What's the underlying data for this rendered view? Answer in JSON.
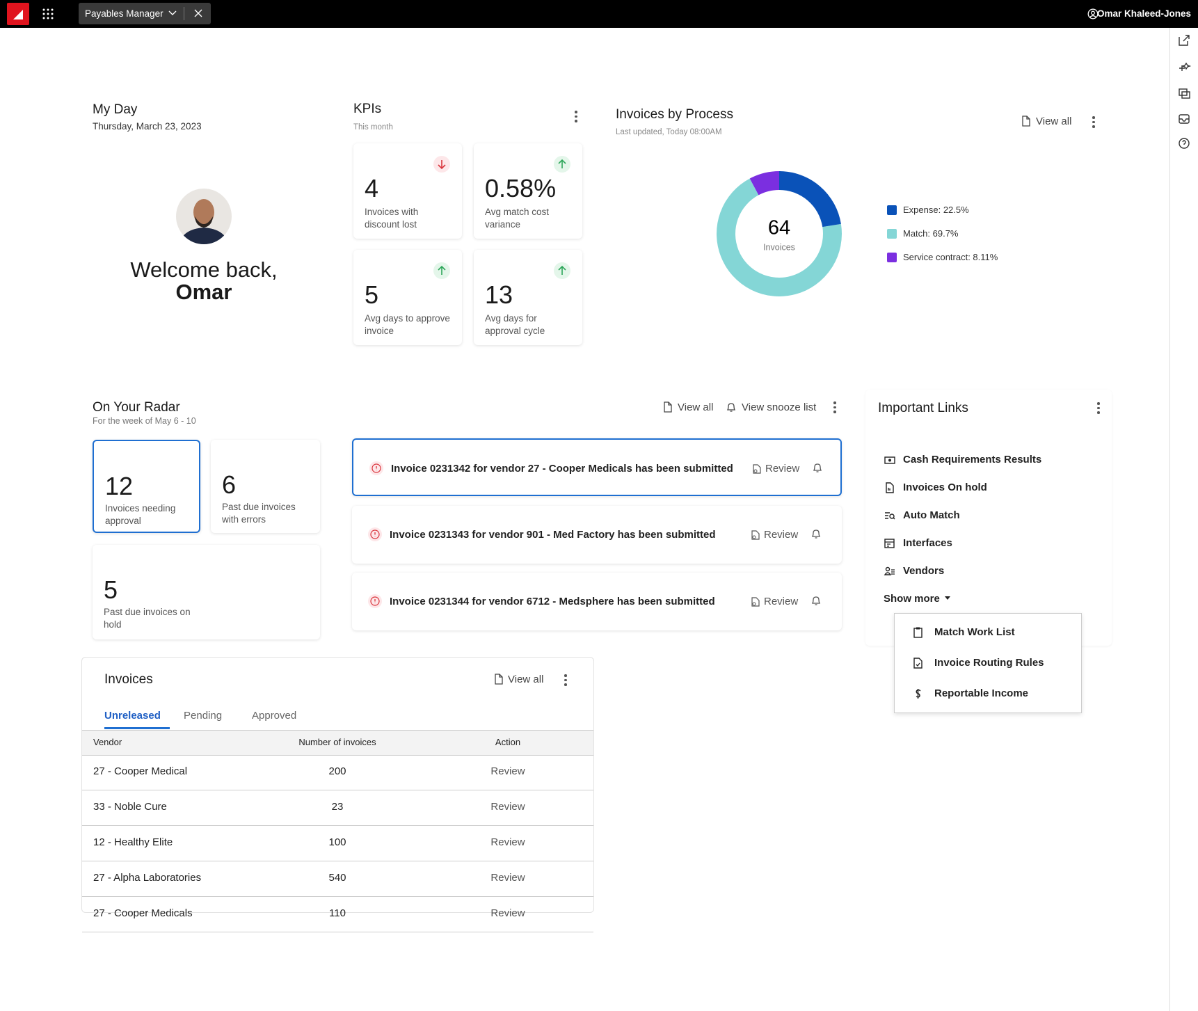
{
  "header": {
    "app": "Payables Manager",
    "user": "Omar Khaleed-Jones"
  },
  "my_day": {
    "title": "My Day",
    "date": "Thursday, March 23, 2023",
    "greeting": "Welcome back,",
    "name": "Omar"
  },
  "kpis": {
    "title": "KPIs",
    "subtitle": "This month",
    "cards": [
      {
        "value": "4",
        "label": "Invoices with discount lost",
        "trend": "down"
      },
      {
        "value": "0.58%",
        "label": "Avg match cost variance",
        "trend": "up"
      },
      {
        "value": "5",
        "label": "Avg days to approve invoice",
        "trend": "up"
      },
      {
        "value": "13",
        "label": "Avg days for approval cycle",
        "trend": "up"
      }
    ]
  },
  "invoices_by_process": {
    "type": "pie",
    "title": "Invoices by Process",
    "subtitle": "Last updated, Today 08:00AM",
    "view_all": "View all",
    "total": "64",
    "total_label": "Invoices",
    "segments": [
      {
        "label": "Expense: 22.5%",
        "value": 22.5,
        "color": "#0a52b8"
      },
      {
        "label": "Match: 69.7%",
        "value": 69.7,
        "color": "#84d6d6"
      },
      {
        "label": "Service contract: 8.11%",
        "value": 8.11,
        "color": "#7b2fe0"
      }
    ]
  },
  "radar": {
    "title": "On Your Radar",
    "subtitle": "For the week of May 6 - 10",
    "view_all": "View all",
    "snooze": "View snooze list",
    "stats": [
      {
        "value": "12",
        "label": "Invoices needing approval"
      },
      {
        "value": "6",
        "label": "Past due invoices with errors"
      },
      {
        "value": "5",
        "label": "Past due invoices on hold"
      }
    ],
    "notifications": [
      {
        "text": "Invoice 0231342 for vendor 27 - Cooper Medicals has been submitted",
        "action": "Review"
      },
      {
        "text": "Invoice 0231343 for vendor 901 - Med Factory has been submitted",
        "action": "Review"
      },
      {
        "text": "Invoice 0231344 for vendor 6712 - Medsphere has been submitted",
        "action": "Review"
      }
    ]
  },
  "links": {
    "title": "Important Links",
    "items": [
      "Cash Requirements Results",
      "Invoices On hold",
      "Auto Match",
      "Interfaces",
      "Vendors"
    ],
    "show_more": "Show more",
    "more_items": [
      "Match Work List",
      "Invoice Routing Rules",
      "Reportable Income"
    ]
  },
  "invoices": {
    "title": "Invoices",
    "view_all": "View all",
    "tabs": [
      "Unreleased",
      "Pending",
      "Approved"
    ],
    "columns": [
      "Vendor",
      "Number of invoices",
      "Action"
    ],
    "rows": [
      [
        "27 - Cooper Medical",
        "200",
        "Review"
      ],
      [
        "33 - Noble Cure",
        "23",
        "Review"
      ],
      [
        "12 - Healthy Elite",
        "100",
        "Review"
      ],
      [
        "27 - Alpha Laboratories",
        "540",
        "Review"
      ],
      [
        "27 - Cooper Medicals",
        "110",
        "Review"
      ]
    ]
  }
}
